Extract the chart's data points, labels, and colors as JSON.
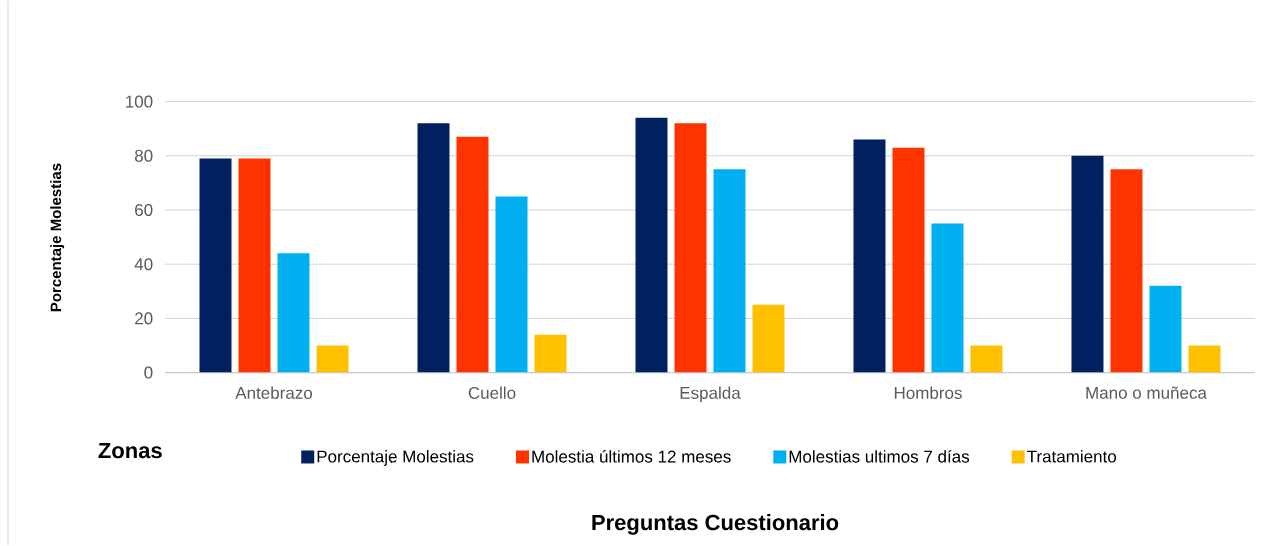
{
  "chart_data": {
    "type": "bar",
    "xlabel": "Zonas",
    "ylabel": "Porcentaje Molestias",
    "categories": [
      "Antebrazo",
      "Cuello",
      "Espalda",
      "Hombros",
      "Mano o muñeca"
    ],
    "series": [
      {
        "name": "Porcentaje Molestias",
        "color": "#002060",
        "values": [
          79,
          92,
          94,
          86,
          80
        ]
      },
      {
        "name": "Molestia últimos 12 meses",
        "color": "#ff3300",
        "values": [
          79,
          87,
          92,
          83,
          75
        ]
      },
      {
        "name": "Molestias ultimos 7 días",
        "color": "#00b0f0",
        "values": [
          44,
          65,
          75,
          55,
          32
        ]
      },
      {
        "name": "Tratamiento",
        "color": "#ffc000",
        "values": [
          10,
          14,
          25,
          10,
          10
        ]
      }
    ],
    "ylim": [
      0,
      100
    ],
    "yticks": [
      0,
      20,
      40,
      60,
      80,
      100
    ],
    "grid": "y",
    "legend": "bottom",
    "annotations": [
      "Preguntas Cuestionario"
    ]
  }
}
